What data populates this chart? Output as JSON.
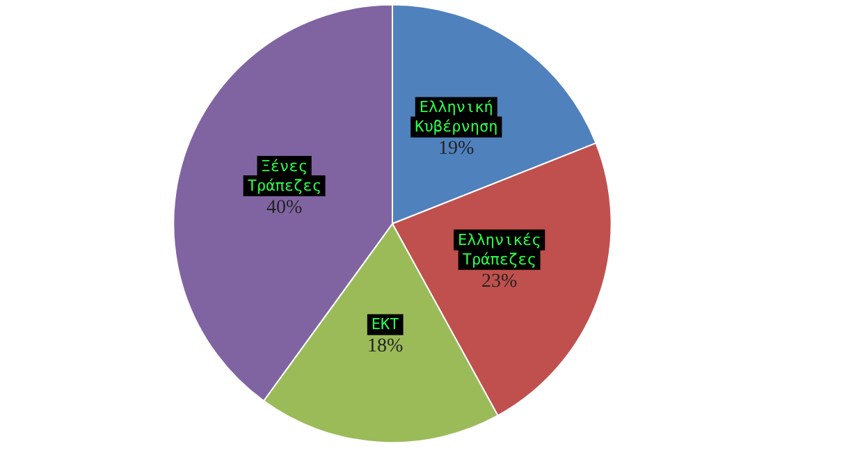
{
  "chart_data": {
    "type": "pie",
    "categories": [
      "Ελληνική Κυβέρνηση",
      "Ελληνικές Τράπεζες",
      "ΕΚΤ",
      "Ξένες Τράπεζες"
    ],
    "values": [
      19,
      23,
      18,
      40
    ],
    "value_labels": [
      "19%",
      "23%",
      "18%",
      "40%"
    ],
    "colors": [
      "#4f81bd",
      "#c0504d",
      "#9bbb59",
      "#8064a2"
    ],
    "legend": false
  }
}
